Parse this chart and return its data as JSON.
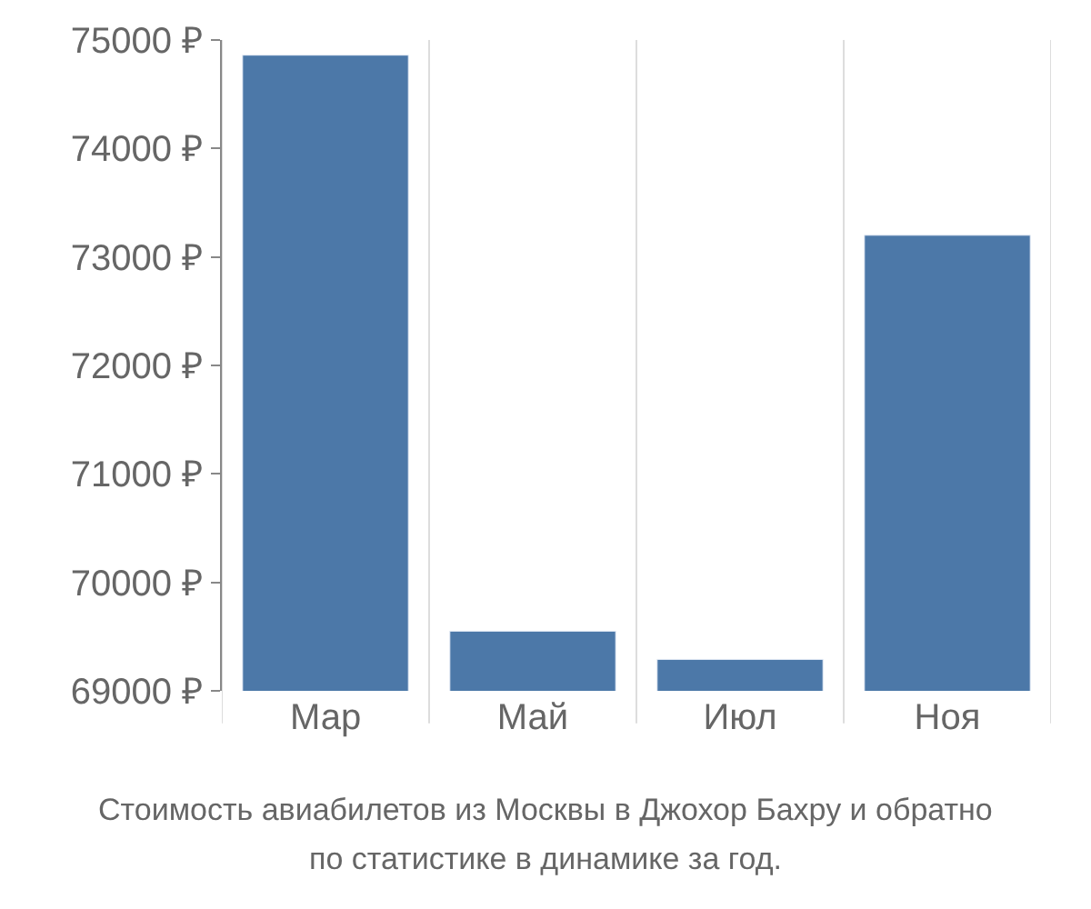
{
  "chart_data": {
    "type": "bar",
    "categories": [
      "Мар",
      "Май",
      "Июл",
      "Ноя"
    ],
    "series": [
      {
        "color": "#4c78a8",
        "values": [
          74860,
          69550,
          69290,
          73200
        ]
      }
    ],
    "ylim": [
      69000,
      75000
    ],
    "yticks": [
      {
        "value": 69000,
        "label": "69000 ₽"
      },
      {
        "value": 70000,
        "label": "70000 ₽"
      },
      {
        "value": 71000,
        "label": "71000 ₽"
      },
      {
        "value": 72000,
        "label": "72000 ₽"
      },
      {
        "value": 73000,
        "label": "73000 ₽"
      },
      {
        "value": 74000,
        "label": "74000 ₽"
      },
      {
        "value": 75000,
        "label": "75000 ₽"
      }
    ],
    "grid": "x",
    "legend": false,
    "annotations": [
      "Стоимость авиабилетов из Москвы в Джохор Бахру и обратно",
      "по статистике в динамике за год."
    ]
  }
}
